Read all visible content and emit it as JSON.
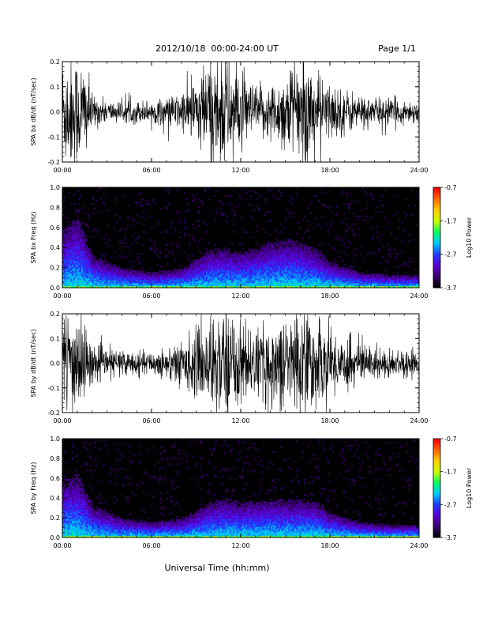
{
  "header": {
    "date_range": "2012/10/18  00:00-24:00 UT",
    "page": "Page 1/1"
  },
  "footer": {
    "xlabel": "Universal Time (hh:mm)"
  },
  "colorbar_ticks": [
    "-0.7",
    "-1.7",
    "-2.7",
    "-3.7"
  ],
  "colorbar_label": "Log10 Power",
  "colors": {
    "background": "#ffffff",
    "spectrogram_floor": "#000000",
    "colormap": [
      "#000000",
      "#3a006e",
      "#5a00d8",
      "#1e3cff",
      "#00c8ff",
      "#00ff66",
      "#c8ff00",
      "#ffd000",
      "#ff6a00",
      "#ff0000"
    ]
  },
  "chart_data": [
    {
      "type": "line",
      "ylabel": "SPA bx dB/dt (nT/sec)",
      "xlim": [
        "00:00",
        "24:00"
      ],
      "ylim": [
        -0.2,
        0.2
      ],
      "x_ticks": [
        "00:00",
        "06:00",
        "12:00",
        "18:00",
        "24:00"
      ],
      "y_ticks": [
        "0.2",
        "0.1",
        "0.0",
        "-0.1",
        "-0.2"
      ],
      "envelope": {
        "x_hours": [
          0,
          0.5,
          1,
          1.5,
          2,
          3,
          4,
          5,
          6,
          7,
          8,
          9,
          10,
          10.5,
          11,
          11.5,
          12,
          13,
          14,
          15,
          15.5,
          16,
          16.5,
          17,
          18,
          19,
          20,
          21,
          22,
          23,
          24
        ],
        "amplitude": [
          0.2,
          0.2,
          0.2,
          0.18,
          0.06,
          0.04,
          0.035,
          0.04,
          0.04,
          0.05,
          0.07,
          0.12,
          0.2,
          0.2,
          0.2,
          0.18,
          0.13,
          0.09,
          0.1,
          0.14,
          0.18,
          0.16,
          0.2,
          0.14,
          0.1,
          0.08,
          0.06,
          0.05,
          0.05,
          0.04,
          0.04
        ]
      }
    },
    {
      "type": "heatmap",
      "ylabel": "SPA bx Freq (Hz)",
      "xlim": [
        "00:00",
        "24:00"
      ],
      "ylim": [
        0.0,
        1.0
      ],
      "x_ticks": [
        "00:00",
        "06:00",
        "12:00",
        "18:00",
        "24:00"
      ],
      "y_ticks": [
        "1.0",
        "0.8",
        "0.6",
        "0.4",
        "0.2",
        "0.0"
      ],
      "zlim": [
        -3.7,
        -0.7
      ],
      "zlabel": "Log10 Power",
      "activity_peak_freq_hz": {
        "x_hours": [
          0,
          1,
          2,
          4,
          6,
          8,
          10,
          11,
          12,
          14,
          15,
          16,
          17,
          18,
          20,
          22,
          24
        ],
        "freq": [
          0.45,
          0.55,
          0.25,
          0.15,
          0.12,
          0.15,
          0.3,
          0.3,
          0.28,
          0.35,
          0.38,
          0.35,
          0.3,
          0.2,
          0.12,
          0.1,
          0.1
        ]
      }
    },
    {
      "type": "line",
      "ylabel": "SPA by dB/dt (nT/sec)",
      "xlim": [
        "00:00",
        "24:00"
      ],
      "ylim": [
        -0.2,
        0.2
      ],
      "x_ticks": [
        "00:00",
        "06:00",
        "12:00",
        "18:00",
        "24:00"
      ],
      "y_ticks": [
        "0.2",
        "0.1",
        "0.0",
        "-0.1",
        "-0.2"
      ],
      "envelope": {
        "x_hours": [
          0,
          0.5,
          1,
          1.5,
          2,
          3,
          4,
          5,
          6,
          7,
          8,
          9,
          10,
          10.5,
          11,
          11.5,
          12,
          13,
          14,
          15,
          15.5,
          16,
          16.5,
          17,
          18,
          19,
          20,
          21,
          22,
          23,
          24
        ],
        "amplitude": [
          0.2,
          0.2,
          0.2,
          0.15,
          0.06,
          0.05,
          0.05,
          0.04,
          0.04,
          0.06,
          0.08,
          0.12,
          0.16,
          0.2,
          0.2,
          0.18,
          0.15,
          0.12,
          0.14,
          0.16,
          0.2,
          0.18,
          0.2,
          0.16,
          0.12,
          0.1,
          0.08,
          0.06,
          0.05,
          0.05,
          0.04
        ]
      }
    },
    {
      "type": "heatmap",
      "ylabel": "SPA by Freq (Hz)",
      "xlim": [
        "00:00",
        "24:00"
      ],
      "ylim": [
        0.0,
        1.0
      ],
      "x_ticks": [
        "00:00",
        "06:00",
        "12:00",
        "18:00",
        "24:00"
      ],
      "y_ticks": [
        "1.0",
        "0.8",
        "0.6",
        "0.4",
        "0.2",
        "0.0"
      ],
      "zlim": [
        -3.7,
        -0.7
      ],
      "zlabel": "Log10 Power",
      "activity_peak_freq_hz": {
        "x_hours": [
          0,
          1,
          2,
          4,
          6,
          8,
          10,
          11,
          12,
          14,
          15,
          16,
          17,
          18,
          20,
          22,
          24
        ],
        "freq": [
          0.45,
          0.5,
          0.25,
          0.15,
          0.12,
          0.15,
          0.28,
          0.3,
          0.28,
          0.3,
          0.3,
          0.3,
          0.28,
          0.2,
          0.12,
          0.1,
          0.1
        ]
      }
    }
  ]
}
